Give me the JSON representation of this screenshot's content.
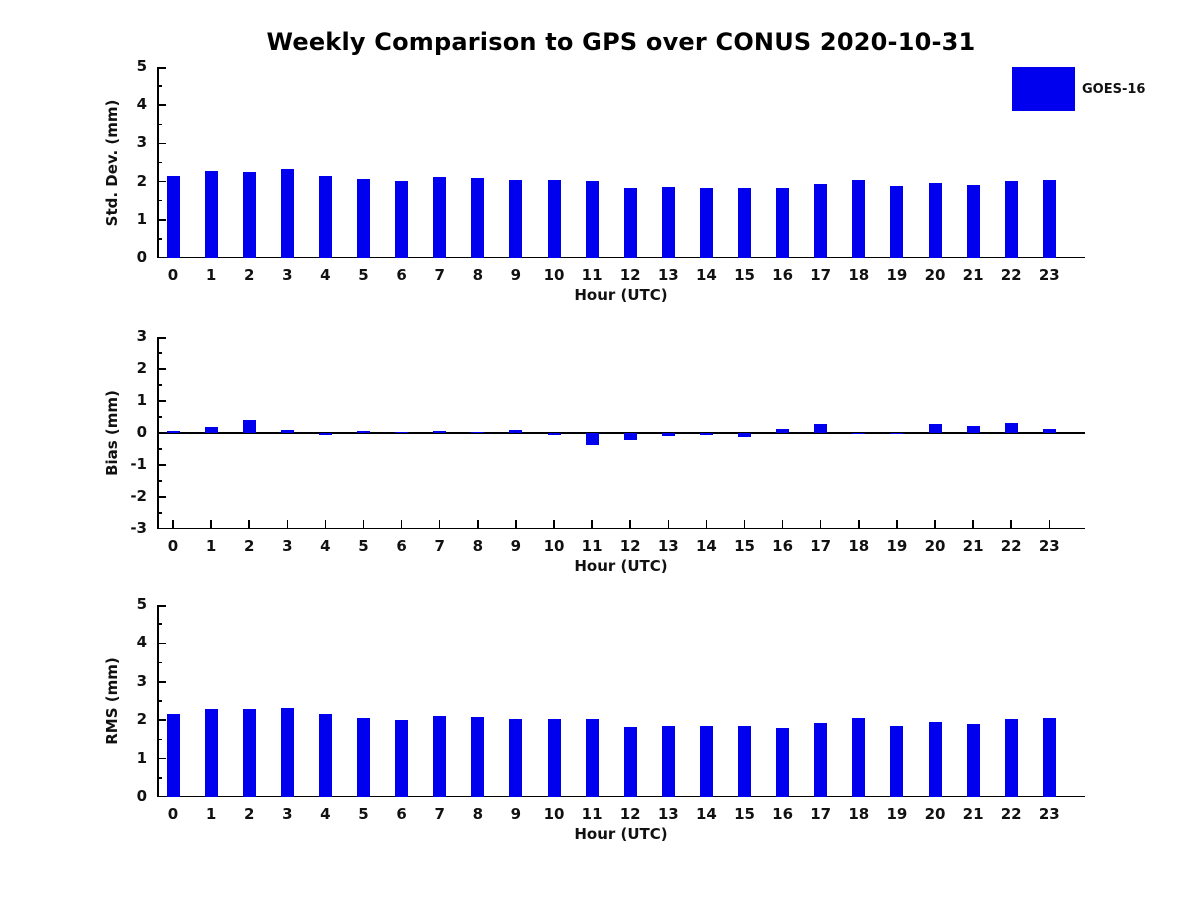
{
  "title": "Weekly Comparison to GPS over CONUS 2020-10-31",
  "legend": {
    "label": "GOES-16",
    "swatch_color": "#0000EE",
    "position": "top-right"
  },
  "colors": {
    "bar": "#0000EE",
    "text": "#111111",
    "axis": "#000000"
  },
  "chart_data": [
    {
      "type": "bar",
      "panel": "std_dev",
      "ylabel": "Std. Dev. (mm)",
      "xlabel": "Hour (UTC)",
      "ylim": [
        0,
        5
      ],
      "yticks": [
        0,
        1,
        2,
        3,
        4,
        5
      ],
      "minor_tick_step": 0.5,
      "grid": false,
      "series_name": "GOES-16",
      "categories": [
        "0",
        "1",
        "2",
        "3",
        "4",
        "5",
        "6",
        "7",
        "8",
        "9",
        "10",
        "11",
        "12",
        "13",
        "14",
        "15",
        "16",
        "17",
        "18",
        "19",
        "20",
        "21",
        "22",
        "23"
      ],
      "values": [
        2.15,
        2.27,
        2.24,
        2.32,
        2.15,
        2.07,
        2.01,
        2.12,
        2.09,
        2.05,
        2.05,
        2.01,
        1.82,
        1.85,
        1.84,
        1.84,
        1.82,
        1.93,
        2.05,
        1.88,
        1.97,
        1.9,
        2.02,
        2.05
      ]
    },
    {
      "type": "bar",
      "panel": "bias",
      "ylabel": "Bias (mm)",
      "xlabel": "Hour (UTC)",
      "ylim": [
        -3,
        3
      ],
      "yticks": [
        -3,
        -2,
        -1,
        0,
        1,
        2,
        3
      ],
      "minor_tick_step": 0.5,
      "grid": false,
      "series_name": "GOES-16",
      "categories": [
        "0",
        "1",
        "2",
        "3",
        "4",
        "5",
        "6",
        "7",
        "8",
        "9",
        "10",
        "11",
        "12",
        "13",
        "14",
        "15",
        "16",
        "17",
        "18",
        "19",
        "20",
        "21",
        "22",
        "23"
      ],
      "values": [
        0.07,
        0.19,
        0.42,
        0.08,
        -0.05,
        0.06,
        0.04,
        0.07,
        0.02,
        0.1,
        -0.06,
        -0.37,
        -0.21,
        -0.08,
        -0.05,
        -0.13,
        0.11,
        0.28,
        -0.02,
        -0.02,
        0.27,
        0.23,
        0.32,
        0.14
      ]
    },
    {
      "type": "bar",
      "panel": "rms",
      "ylabel": "RMS (mm)",
      "xlabel": "Hour (UTC)",
      "ylim": [
        0,
        5
      ],
      "yticks": [
        0,
        1,
        2,
        3,
        4,
        5
      ],
      "minor_tick_step": 0.5,
      "grid": false,
      "series_name": "GOES-16",
      "categories": [
        "0",
        "1",
        "2",
        "3",
        "4",
        "5",
        "6",
        "7",
        "8",
        "9",
        "10",
        "11",
        "12",
        "13",
        "14",
        "15",
        "16",
        "17",
        "18",
        "19",
        "20",
        "21",
        "22",
        "23"
      ],
      "values": [
        2.15,
        2.3,
        2.29,
        2.33,
        2.15,
        2.06,
        2.0,
        2.11,
        2.08,
        2.04,
        2.02,
        2.04,
        1.83,
        1.86,
        1.84,
        1.86,
        1.8,
        1.93,
        2.07,
        1.86,
        1.96,
        1.9,
        2.03,
        2.06
      ]
    }
  ]
}
